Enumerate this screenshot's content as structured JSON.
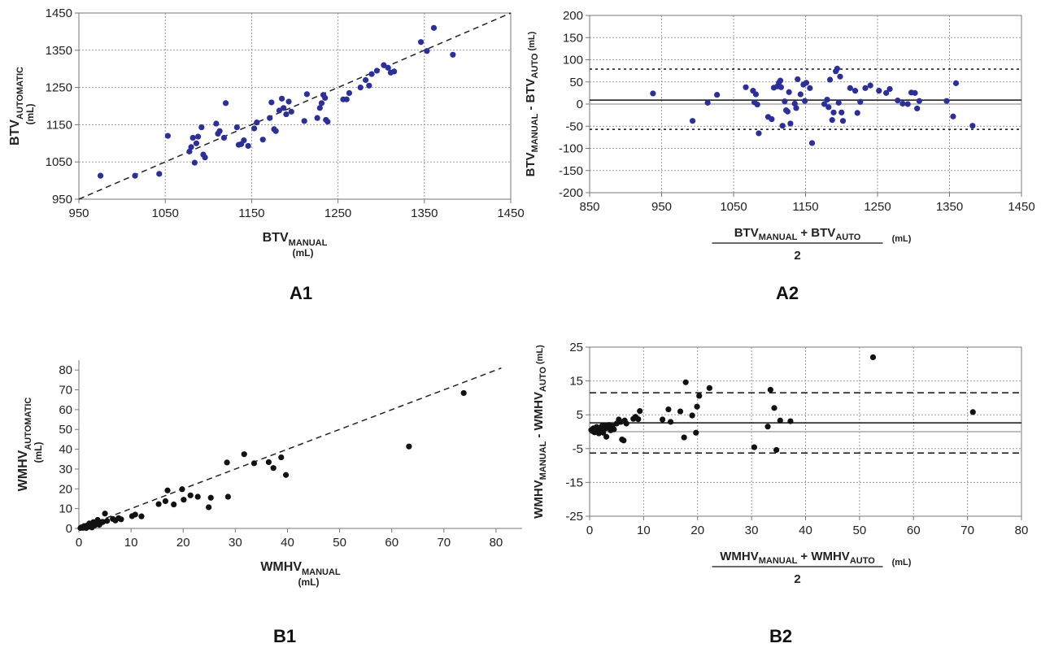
{
  "chart_data": [
    {
      "panel": "A1",
      "type": "scatter",
      "xlim": [
        950,
        1450
      ],
      "ylim": [
        950,
        1450
      ],
      "xticks": [
        950,
        1050,
        1150,
        1250,
        1350,
        1450
      ],
      "yticks": [
        950,
        1050,
        1150,
        1250,
        1350,
        1450
      ],
      "xlabel": {
        "base": "BTV",
        "sub": "MANUAL",
        "unit": "(mL)"
      },
      "ylabel": {
        "base": "BTV",
        "sub": "AUTOMATIC",
        "unit": "(mL)"
      },
      "grid": true,
      "marker_color": "#2b2f9e",
      "reference_line": {
        "style": "dashed",
        "from": [
          950,
          950
        ],
        "to": [
          1450,
          1450
        ]
      },
      "points": [
        [
          975,
          1013
        ],
        [
          1015,
          1013
        ],
        [
          1043,
          1018
        ],
        [
          1053,
          1120
        ],
        [
          1078,
          1078
        ],
        [
          1080,
          1090
        ],
        [
          1082,
          1115
        ],
        [
          1084,
          1048
        ],
        [
          1086,
          1100
        ],
        [
          1088,
          1118
        ],
        [
          1092,
          1143
        ],
        [
          1094,
          1070
        ],
        [
          1096,
          1062
        ],
        [
          1109,
          1153
        ],
        [
          1111,
          1126
        ],
        [
          1113,
          1133
        ],
        [
          1118,
          1115
        ],
        [
          1120,
          1208
        ],
        [
          1133,
          1143
        ],
        [
          1135,
          1096
        ],
        [
          1138,
          1098
        ],
        [
          1141,
          1108
        ],
        [
          1146,
          1093
        ],
        [
          1153,
          1140
        ],
        [
          1156,
          1156
        ],
        [
          1163,
          1110
        ],
        [
          1171,
          1168
        ],
        [
          1173,
          1210
        ],
        [
          1176,
          1138
        ],
        [
          1178,
          1133
        ],
        [
          1182,
          1188
        ],
        [
          1185,
          1220
        ],
        [
          1187,
          1195
        ],
        [
          1190,
          1178
        ],
        [
          1193,
          1212
        ],
        [
          1196,
          1185
        ],
        [
          1211,
          1160
        ],
        [
          1214,
          1232
        ],
        [
          1226,
          1168
        ],
        [
          1229,
          1195
        ],
        [
          1231,
          1208
        ],
        [
          1233,
          1230
        ],
        [
          1235,
          1222
        ],
        [
          1236,
          1163
        ],
        [
          1238,
          1158
        ],
        [
          1256,
          1218
        ],
        [
          1260,
          1218
        ],
        [
          1263,
          1235
        ],
        [
          1276,
          1250
        ],
        [
          1282,
          1270
        ],
        [
          1286,
          1255
        ],
        [
          1289,
          1286
        ],
        [
          1295,
          1295
        ],
        [
          1303,
          1310
        ],
        [
          1308,
          1303
        ],
        [
          1311,
          1290
        ],
        [
          1315,
          1293
        ],
        [
          1346,
          1372
        ],
        [
          1353,
          1348
        ],
        [
          1361,
          1410
        ],
        [
          1383,
          1338
        ]
      ]
    },
    {
      "panel": "A2",
      "type": "scatter",
      "xlim": [
        850,
        1450
      ],
      "ylim": [
        -200,
        200
      ],
      "xticks": [
        850,
        950,
        1050,
        1150,
        1250,
        1350,
        1450
      ],
      "yticks": [
        200,
        150,
        100,
        50,
        0,
        -50,
        -100,
        -150,
        -200
      ],
      "xlabel": {
        "base1": "BTV",
        "sub1": "MANUAL",
        "plus": "+ BTV",
        "sub2": "AUTO",
        "den": "2",
        "unit": "(mL)"
      },
      "ylabel": {
        "base1": "BTV",
        "sub1": "MANUAL",
        "mid": "- BTV",
        "sub2": "AUTO",
        "unit": "(mL)"
      },
      "grid": true,
      "marker_color": "#2b2f9e",
      "mean_line": 9,
      "limits": [
        79,
        -57
      ],
      "limit_style": "dotted",
      "points": [
        [
          938,
          24
        ],
        [
          993,
          -38
        ],
        [
          1014,
          3
        ],
        [
          1027,
          21
        ],
        [
          1067,
          38
        ],
        [
          1077,
          30
        ],
        [
          1079,
          4
        ],
        [
          1081,
          22
        ],
        [
          1083,
          -1
        ],
        [
          1085,
          -66
        ],
        [
          1098,
          -29
        ],
        [
          1103,
          -34
        ],
        [
          1106,
          37
        ],
        [
          1111,
          40
        ],
        [
          1113,
          48
        ],
        [
          1115,
          53
        ],
        [
          1116,
          38
        ],
        [
          1118,
          -49
        ],
        [
          1121,
          6
        ],
        [
          1123,
          -14
        ],
        [
          1125,
          -17
        ],
        [
          1127,
          27
        ],
        [
          1129,
          -44
        ],
        [
          1135,
          1
        ],
        [
          1137,
          -9
        ],
        [
          1139,
          56
        ],
        [
          1143,
          22
        ],
        [
          1147,
          44
        ],
        [
          1149,
          7
        ],
        [
          1151,
          48
        ],
        [
          1156,
          36
        ],
        [
          1159,
          -88
        ],
        [
          1176,
          0
        ],
        [
          1180,
          10
        ],
        [
          1182,
          -7
        ],
        [
          1184,
          55
        ],
        [
          1187,
          -36
        ],
        [
          1189,
          -19
        ],
        [
          1192,
          74
        ],
        [
          1194,
          80
        ],
        [
          1196,
          3
        ],
        [
          1198,
          62
        ],
        [
          1200,
          -19
        ],
        [
          1202,
          -38
        ],
        [
          1212,
          36
        ],
        [
          1219,
          30
        ],
        [
          1222,
          -20
        ],
        [
          1226,
          5
        ],
        [
          1233,
          36
        ],
        [
          1240,
          42
        ],
        [
          1252,
          30
        ],
        [
          1262,
          25
        ],
        [
          1267,
          34
        ],
        [
          1278,
          8
        ],
        [
          1285,
          1
        ],
        [
          1292,
          0
        ],
        [
          1297,
          26
        ],
        [
          1302,
          25
        ],
        [
          1305,
          -10
        ],
        [
          1308,
          7
        ],
        [
          1346,
          7
        ],
        [
          1355,
          -28
        ],
        [
          1359,
          47
        ],
        [
          1382,
          -49
        ]
      ]
    },
    {
      "panel": "B1",
      "type": "scatter",
      "xlim": [
        0,
        85
      ],
      "ylim": [
        0,
        85
      ],
      "xticks": [
        0,
        10,
        20,
        30,
        40,
        50,
        60,
        70,
        80
      ],
      "yticks": [
        0,
        10,
        20,
        30,
        40,
        50,
        60,
        70,
        80
      ],
      "xlabel": {
        "base": "WMHV",
        "sub": "MANUAL",
        "unit": "(mL)"
      },
      "ylabel": {
        "base": "WMHV",
        "sub": "AUTOMATIC",
        "unit": "(mL)"
      },
      "grid": false,
      "marker_color": "#111111",
      "reference_line": {
        "style": "dashed",
        "from": [
          0,
          0
        ],
        "to": [
          81,
          81
        ]
      },
      "points": [
        [
          0.3,
          0.2
        ],
        [
          0.5,
          0.6
        ],
        [
          0.8,
          0.3
        ],
        [
          1.0,
          1.2
        ],
        [
          1.2,
          0.6
        ],
        [
          1.4,
          0.2
        ],
        [
          1.6,
          1.5
        ],
        [
          1.8,
          0.8
        ],
        [
          2.0,
          2.5
        ],
        [
          2.2,
          1.0
        ],
        [
          2.5,
          0.5
        ],
        [
          2.8,
          3.2
        ],
        [
          3.0,
          1.5
        ],
        [
          3.3,
          2.5
        ],
        [
          3.6,
          4.3
        ],
        [
          3.9,
          1.8
        ],
        [
          4.2,
          2.8
        ],
        [
          4.6,
          3.3
        ],
        [
          5.0,
          7.5
        ],
        [
          5.4,
          3.8
        ],
        [
          6.5,
          4.8
        ],
        [
          7.0,
          4.0
        ],
        [
          7.6,
          5.2
        ],
        [
          8.1,
          4.6
        ],
        [
          10.2,
          6.2
        ],
        [
          10.8,
          7.0
        ],
        [
          12.0,
          6.1
        ],
        [
          15.3,
          12.3
        ],
        [
          16.6,
          13.8
        ],
        [
          17.0,
          19.2
        ],
        [
          18.2,
          12.1
        ],
        [
          19.8,
          19.8
        ],
        [
          20.1,
          14.5
        ],
        [
          21.4,
          16.7
        ],
        [
          22.8,
          16.0
        ],
        [
          24.9,
          10.7
        ],
        [
          25.3,
          15.5
        ],
        [
          28.4,
          33.3
        ],
        [
          28.6,
          16.0
        ],
        [
          31.7,
          37.5
        ],
        [
          33.6,
          32.9
        ],
        [
          36.4,
          33.5
        ],
        [
          37.3,
          30.5
        ],
        [
          38.8,
          35.9
        ],
        [
          39.7,
          27.0
        ],
        [
          63.3,
          41.4
        ],
        [
          73.8,
          68.4
        ]
      ]
    },
    {
      "panel": "B2",
      "type": "scatter",
      "xlim": [
        0,
        80
      ],
      "ylim": [
        -25,
        25
      ],
      "xticks": [
        0,
        10,
        20,
        30,
        40,
        50,
        60,
        70,
        80
      ],
      "yticks": [
        25,
        15,
        5,
        -5,
        -15,
        -25
      ],
      "xlabel": {
        "base1": "WMHV",
        "sub1": "MANUAL",
        "plus": "+ WMHV",
        "sub2": "AUTO",
        "den": "2",
        "unit": "(mL)"
      },
      "ylabel": {
        "base1": "WMHV",
        "sub1": "MANUAL",
        "mid": "- WMHV",
        "sub2": "AUTO",
        "unit": "(mL)"
      },
      "grid": true,
      "marker_color": "#111111",
      "mean_line": 2.6,
      "limits": [
        11.5,
        -6.3
      ],
      "limit_style": "dashed",
      "points": [
        [
          0.3,
          0.5
        ],
        [
          0.5,
          0.2
        ],
        [
          0.7,
          1.0
        ],
        [
          0.9,
          -0.2
        ],
        [
          1.1,
          0.8
        ],
        [
          1.3,
          1.4
        ],
        [
          1.5,
          0.3
        ],
        [
          1.7,
          -0.5
        ],
        [
          1.9,
          1.1
        ],
        [
          2.1,
          0.6
        ],
        [
          2.3,
          1.7
        ],
        [
          2.5,
          -0.3
        ],
        [
          2.7,
          1.9
        ],
        [
          2.9,
          0.9
        ],
        [
          3.1,
          -1.5
        ],
        [
          3.3,
          1.2
        ],
        [
          3.6,
          2.0
        ],
        [
          3.9,
          0.4
        ],
        [
          4.2,
          1.6
        ],
        [
          4.5,
          0.7
        ],
        [
          5.0,
          2.4
        ],
        [
          5.4,
          3.6
        ],
        [
          5.8,
          2.9
        ],
        [
          6.0,
          -2.3
        ],
        [
          6.3,
          -2.6
        ],
        [
          6.5,
          3.3
        ],
        [
          6.8,
          2.4
        ],
        [
          8.1,
          3.8
        ],
        [
          8.5,
          4.4
        ],
        [
          9.0,
          3.7
        ],
        [
          9.3,
          6.1
        ],
        [
          13.5,
          3.6
        ],
        [
          14.6,
          6.6
        ],
        [
          15.0,
          2.9
        ],
        [
          16.8,
          6.0
        ],
        [
          17.5,
          -1.7
        ],
        [
          17.8,
          14.6
        ],
        [
          19.0,
          4.8
        ],
        [
          19.7,
          -0.3
        ],
        [
          19.9,
          7.4
        ],
        [
          20.3,
          10.6
        ],
        [
          22.2,
          12.9
        ],
        [
          30.5,
          -4.6
        ],
        [
          33.0,
          1.5
        ],
        [
          33.5,
          12.4
        ],
        [
          34.2,
          7.0
        ],
        [
          34.6,
          -5.4
        ],
        [
          35.3,
          3.3
        ],
        [
          37.2,
          3.1
        ],
        [
          52.5,
          22.0
        ],
        [
          71.0,
          5.8
        ]
      ]
    }
  ],
  "panel_labels": {
    "A1": "A1",
    "A2": "A2",
    "B1": "B1",
    "B2": "B2"
  }
}
